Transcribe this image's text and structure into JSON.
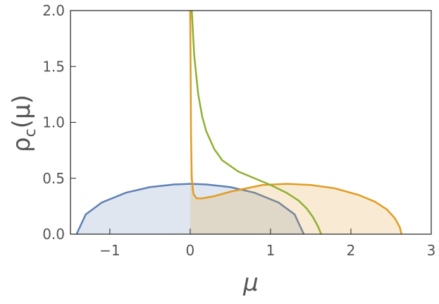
{
  "chart_data": {
    "type": "line",
    "xlabel": "μ",
    "ylabel": {
      "base": "ρ",
      "sub": "c",
      "rest": "(μ)"
    },
    "xlim": [
      -1.49,
      3
    ],
    "ylim": [
      0,
      2
    ],
    "xticks": [
      {
        "value": -1,
        "label": "−1"
      },
      0,
      1,
      2,
      3
    ],
    "yticks": [
      {
        "value": 0,
        "label": "0.0"
      },
      0.5,
      {
        "value": 1,
        "label": "1.0"
      },
      1.5,
      {
        "value": 2,
        "label": "2.0"
      }
    ],
    "series": [
      {
        "color": "#5e81b5",
        "fill": true,
        "x": [
          -1.414,
          -1.3,
          -1.1,
          -0.8,
          -0.5,
          -0.2,
          0,
          0.2,
          0.5,
          0.8,
          1.1,
          1.3,
          1.414
        ],
        "values": [
          0,
          0.177,
          0.283,
          0.371,
          0.421,
          0.445,
          0.45,
          0.445,
          0.421,
          0.371,
          0.283,
          0.177,
          0
        ]
      },
      {
        "color": "#e19c24",
        "fill": true,
        "x": [
          0,
          0.005,
          0.01,
          0.02,
          0.04,
          0.08,
          0.15,
          0.3,
          0.5,
          0.7,
          0.9,
          1.2,
          1.5,
          1.8,
          2.1,
          2.3,
          2.45,
          2.55,
          2.61,
          2.63
        ],
        "values": [
          2.0,
          1.5,
          0.9,
          0.5,
          0.36,
          0.32,
          0.32,
          0.34,
          0.38,
          0.41,
          0.44,
          0.45,
          0.44,
          0.41,
          0.35,
          0.29,
          0.22,
          0.14,
          0.06,
          0
        ]
      },
      {
        "color": "#8fb032",
        "fill": false,
        "x": [
          0.02,
          0.05,
          0.1,
          0.15,
          0.2,
          0.3,
          0.4,
          0.6,
          0.8,
          1.0,
          1.2,
          1.35,
          1.45,
          1.53,
          1.59,
          1.63
        ],
        "values": [
          2.0,
          1.6,
          1.25,
          1.05,
          0.92,
          0.76,
          0.66,
          0.56,
          0.5,
          0.44,
          0.37,
          0.3,
          0.23,
          0.15,
          0.07,
          0
        ]
      }
    ]
  }
}
